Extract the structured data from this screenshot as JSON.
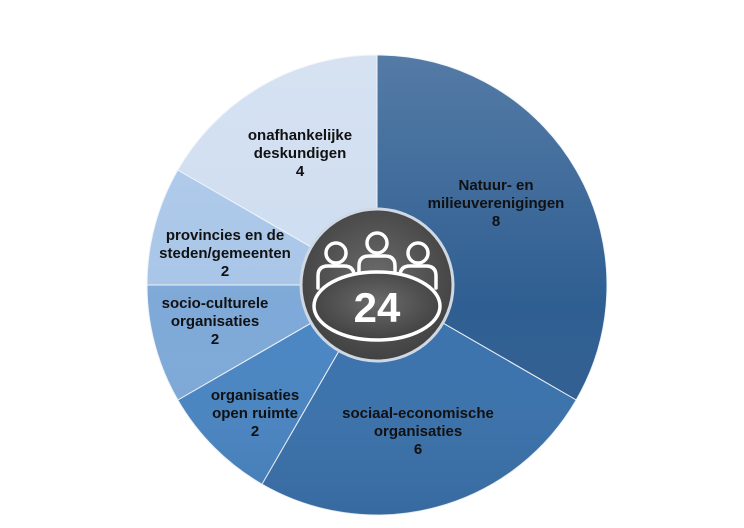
{
  "chart_data": {
    "type": "pie",
    "slices": [
      {
        "label_lines": [
          "Natuur- en",
          "milieuverenigingen"
        ],
        "value": 8,
        "color": "#2f5e92"
      },
      {
        "label_lines": [
          "sociaal-economische",
          "organisaties"
        ],
        "value": 6,
        "color": "#3b73ad"
      },
      {
        "label_lines": [
          "organisaties",
          "open ruimte"
        ],
        "value": 2,
        "color": "#4a86c3"
      },
      {
        "label_lines": [
          "socio-culturele",
          "organisaties"
        ],
        "value": 2,
        "color": "#7ea9d8"
      },
      {
        "label_lines": [
          "provincies en de",
          "steden/gemeenten"
        ],
        "value": 2,
        "color": "#a7c5e8"
      },
      {
        "label_lines": [
          "onafhankelijke",
          "deskundigen"
        ],
        "value": 4,
        "color": "#cddcf0"
      }
    ],
    "total": "24",
    "center_icon": "meeting-table-icon"
  }
}
